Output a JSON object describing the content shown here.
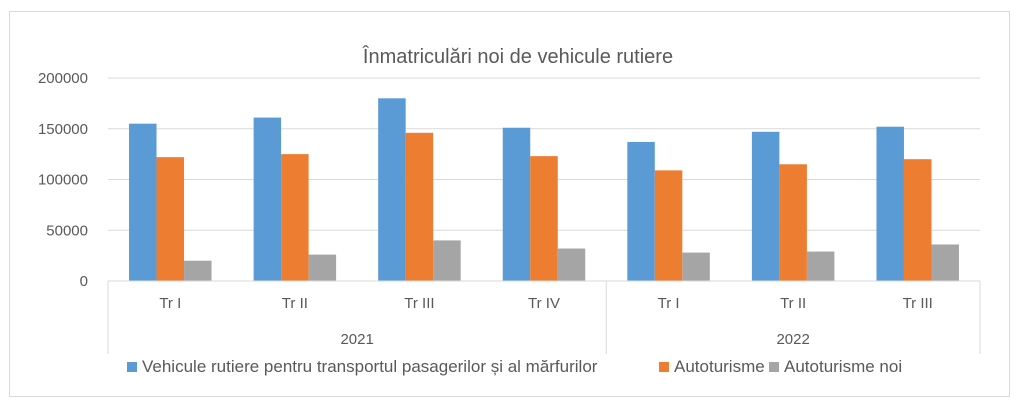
{
  "chart_data": {
    "type": "bar",
    "title": "Înmatriculări noi de vehicule rutiere",
    "categories": [
      "Tr I",
      "Tr II",
      "Tr III",
      "Tr IV",
      "Tr I",
      "Tr II",
      "Tr III"
    ],
    "groups": [
      {
        "label": "2021",
        "count": 4
      },
      {
        "label": "2022",
        "count": 3
      }
    ],
    "series": [
      {
        "name": "Vehicule rutiere pentru transportul pasagerilor și al mărfurilor",
        "color": "#5b9bd5",
        "values": [
          155000,
          161000,
          180000,
          151000,
          137000,
          147000,
          152000
        ]
      },
      {
        "name": "Autoturisme",
        "color": "#ed7d31",
        "values": [
          122000,
          125000,
          146000,
          123000,
          109000,
          115000,
          120000
        ]
      },
      {
        "name": "Autoturisme noi",
        "color": "#a5a5a5",
        "values": [
          20000,
          26000,
          40000,
          32000,
          28000,
          29000,
          36000
        ]
      }
    ],
    "ylim": [
      0,
      200000
    ],
    "yticks": [
      "0",
      "50000",
      "100000",
      "150000",
      "200000"
    ],
    "grid": true,
    "legend_position": "bottom"
  }
}
